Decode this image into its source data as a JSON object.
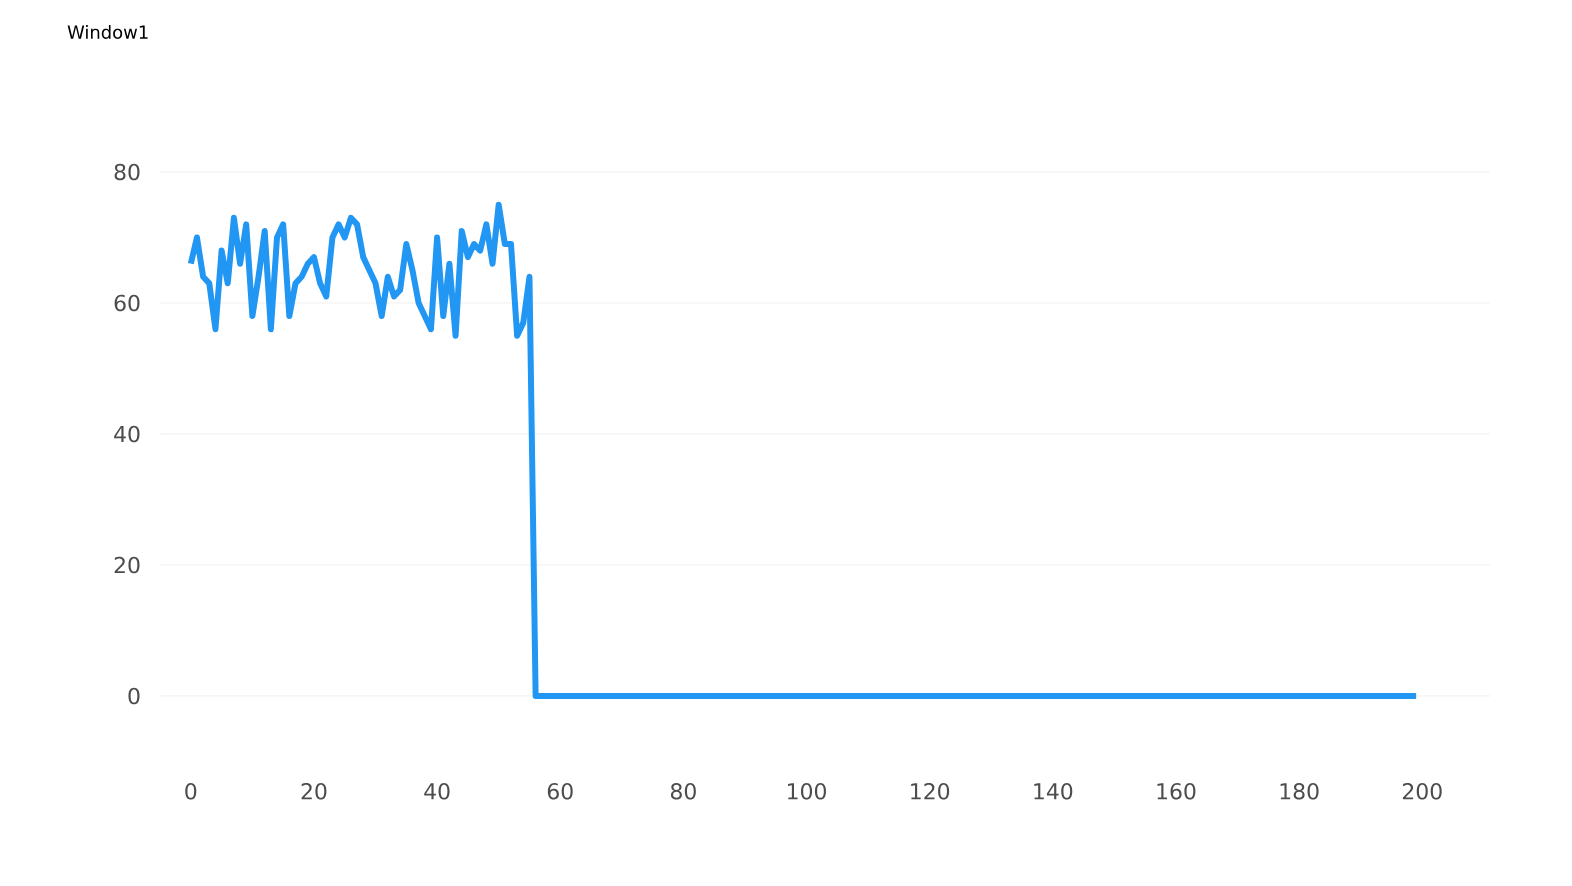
{
  "chart_data": {
    "type": "line",
    "title": "Window1",
    "x": [
      0,
      1,
      2,
      3,
      4,
      5,
      6,
      7,
      8,
      9,
      10,
      11,
      12,
      13,
      14,
      15,
      16,
      17,
      18,
      19,
      20,
      21,
      22,
      23,
      24,
      25,
      26,
      27,
      28,
      29,
      30,
      31,
      32,
      33,
      34,
      35,
      36,
      37,
      38,
      39,
      40,
      41,
      42,
      43,
      44,
      45,
      46,
      47,
      48,
      49,
      50,
      51,
      52,
      53,
      54,
      55,
      56,
      199
    ],
    "series": [
      {
        "color": "#2196f3",
        "values": [
          66,
          70,
          64,
          63,
          56,
          68,
          63,
          73,
          66,
          72,
          58,
          64,
          71,
          56,
          70,
          72,
          58,
          63,
          64,
          66,
          67,
          63,
          61,
          70,
          72,
          70,
          73,
          72,
          67,
          65,
          63,
          58,
          64,
          61,
          62,
          69,
          65,
          60,
          58,
          56,
          70,
          58,
          66,
          55,
          71,
          67,
          69,
          68,
          72,
          66,
          75,
          69,
          69,
          55,
          57,
          64,
          0,
          0
        ]
      }
    ],
    "xlim": [
      -5,
      211
    ],
    "ylim": [
      0,
      80
    ],
    "xticks": [
      0,
      20,
      40,
      60,
      80,
      100,
      120,
      140,
      160,
      180,
      200
    ],
    "yticks": [
      0,
      20,
      40,
      60,
      80
    ],
    "grid": "y",
    "marker": "none",
    "line_style": "solid"
  }
}
